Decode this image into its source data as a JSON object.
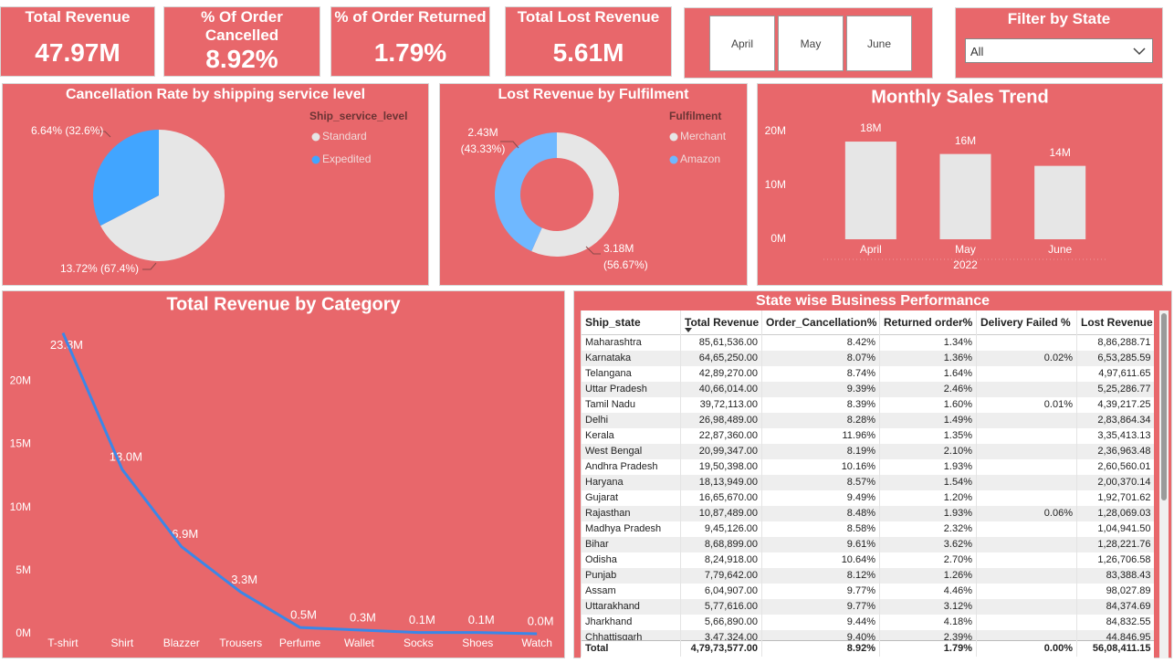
{
  "kpis": [
    {
      "title": "Total Revenue",
      "value": "47.97M"
    },
    {
      "title": "% Of Order Cancelled",
      "value": "8.92%"
    },
    {
      "title": "% of Order Returned",
      "value": "1.79%"
    },
    {
      "title": "Total Lost Revenue",
      "value": "5.61M"
    }
  ],
  "month_slicer": {
    "items": [
      "April",
      "May",
      "June"
    ]
  },
  "state_filter": {
    "title": "Filter by State",
    "selected": "All"
  },
  "chart_data": [
    {
      "type": "pie",
      "title": "Cancellation Rate by shipping service level",
      "legend_title": "Ship_service_level",
      "categories": [
        "Standard",
        "Expedited"
      ],
      "colors": [
        "#e6e6e6",
        "#41a5ff"
      ],
      "values": [
        13.72,
        6.64
      ],
      "value_labels": [
        "13.72% (67.4%)",
        "6.64% (32.6%)"
      ]
    },
    {
      "type": "donut",
      "title": "Lost Revenue by Fulfilment",
      "legend_title": "Fulfilment",
      "categories": [
        "Merchant",
        "Amazon"
      ],
      "colors": [
        "#e6e6e6",
        "#6fb8ff"
      ],
      "values": [
        3.18,
        2.43
      ],
      "value_labels": [
        [
          "3.18M",
          "(56.67%)"
        ],
        [
          "2.43M",
          "(43.33%)"
        ]
      ]
    },
    {
      "type": "bar",
      "title": "Monthly Sales Trend",
      "categories": [
        "April",
        "May",
        "June"
      ],
      "x_group_label": "2022",
      "values": [
        18.1,
        15.8,
        13.6
      ],
      "value_labels": [
        "18M",
        "16M",
        "14M"
      ],
      "color": "#e6e6e6",
      "ylim": [
        0,
        22
      ],
      "yticks": [
        {
          "value": 0,
          "label": "0M"
        },
        {
          "value": 10,
          "label": "10M"
        },
        {
          "value": 20,
          "label": "20M"
        }
      ]
    },
    {
      "type": "line",
      "title": "Total Revenue by Category",
      "categories": [
        "T-shirt",
        "Shirt",
        "Blazzer",
        "Trousers",
        "Perfume",
        "Wallet",
        "Socks",
        "Shoes",
        "Watch"
      ],
      "values": [
        23.8,
        13.0,
        6.9,
        3.3,
        0.5,
        0.3,
        0.1,
        0.1,
        0.0
      ],
      "value_labels": [
        "23.8M",
        "13.0M",
        "6.9M",
        "3.3M",
        "0.5M",
        "0.3M",
        "0.1M",
        "0.1M",
        "0.0M"
      ],
      "color": "#3b87e8",
      "ylim": [
        0,
        25
      ],
      "yticks": [
        {
          "value": 0,
          "label": "0M"
        },
        {
          "value": 5,
          "label": "5M"
        },
        {
          "value": 10,
          "label": "10M"
        },
        {
          "value": 15,
          "label": "15M"
        },
        {
          "value": 20,
          "label": "20M"
        }
      ]
    }
  ],
  "table": {
    "title": "State wise Business Performance",
    "columns": [
      "Ship_state",
      "Total Revenue",
      "Order_Cancellation%",
      "Returned order%",
      "Delivery Failed %",
      "Lost Revenue"
    ],
    "rows": [
      [
        "Maharashtra",
        "85,61,536.00",
        "8.42%",
        "1.34%",
        null,
        "8,86,288.71"
      ],
      [
        "Karnataka",
        "64,65,250.00",
        "8.07%",
        "1.36%",
        "0.02%",
        "6,53,285.59"
      ],
      [
        "Telangana",
        "42,89,270.00",
        "8.74%",
        "1.64%",
        null,
        "4,97,611.65"
      ],
      [
        "Uttar Pradesh",
        "40,66,014.00",
        "9.39%",
        "2.46%",
        null,
        "5,25,286.77"
      ],
      [
        "Tamil Nadu",
        "39,72,113.00",
        "8.39%",
        "1.60%",
        "0.01%",
        "4,39,217.25"
      ],
      [
        "Delhi",
        "26,98,489.00",
        "8.28%",
        "1.49%",
        null,
        "2,83,864.34"
      ],
      [
        "Kerala",
        "22,87,360.00",
        "11.96%",
        "1.35%",
        null,
        "3,35,413.13"
      ],
      [
        "West Bengal",
        "20,99,347.00",
        "8.19%",
        "2.10%",
        null,
        "2,36,963.48"
      ],
      [
        "Andhra Pradesh",
        "19,50,398.00",
        "10.16%",
        "1.93%",
        null,
        "2,60,560.01"
      ],
      [
        "Haryana",
        "18,13,949.00",
        "8.57%",
        "1.54%",
        null,
        "2,00,370.14"
      ],
      [
        "Gujarat",
        "16,65,670.00",
        "9.49%",
        "1.20%",
        null,
        "1,92,701.62"
      ],
      [
        "Rajasthan",
        "10,87,489.00",
        "8.48%",
        "1.93%",
        "0.06%",
        "1,28,069.03"
      ],
      [
        "Madhya Pradesh",
        "9,45,126.00",
        "8.58%",
        "2.32%",
        null,
        "1,04,941.50"
      ],
      [
        "Bihar",
        "8,68,899.00",
        "9.61%",
        "3.62%",
        null,
        "1,28,221.76"
      ],
      [
        "Odisha",
        "8,24,918.00",
        "10.64%",
        "2.70%",
        null,
        "1,26,706.58"
      ],
      [
        "Punjab",
        "7,79,642.00",
        "8.12%",
        "1.26%",
        null,
        "83,388.43"
      ],
      [
        "Assam",
        "6,04,907.00",
        "9.77%",
        "4.46%",
        null,
        "98,027.89"
      ],
      [
        "Uttarakhand",
        "5,77,616.00",
        "9.77%",
        "3.12%",
        null,
        "84,374.69"
      ],
      [
        "Jharkhand",
        "5,66,890.00",
        "9.44%",
        "4.18%",
        null,
        "84,832.55"
      ],
      [
        "Chhattisgarh",
        "3,47,324.00",
        "9.40%",
        "2.39%",
        null,
        "44,846.95"
      ]
    ],
    "total": [
      "Total",
      "4,79,73,577.00",
      "8.92%",
      "1.79%",
      "0.00%",
      "56,08,411.15"
    ]
  }
}
